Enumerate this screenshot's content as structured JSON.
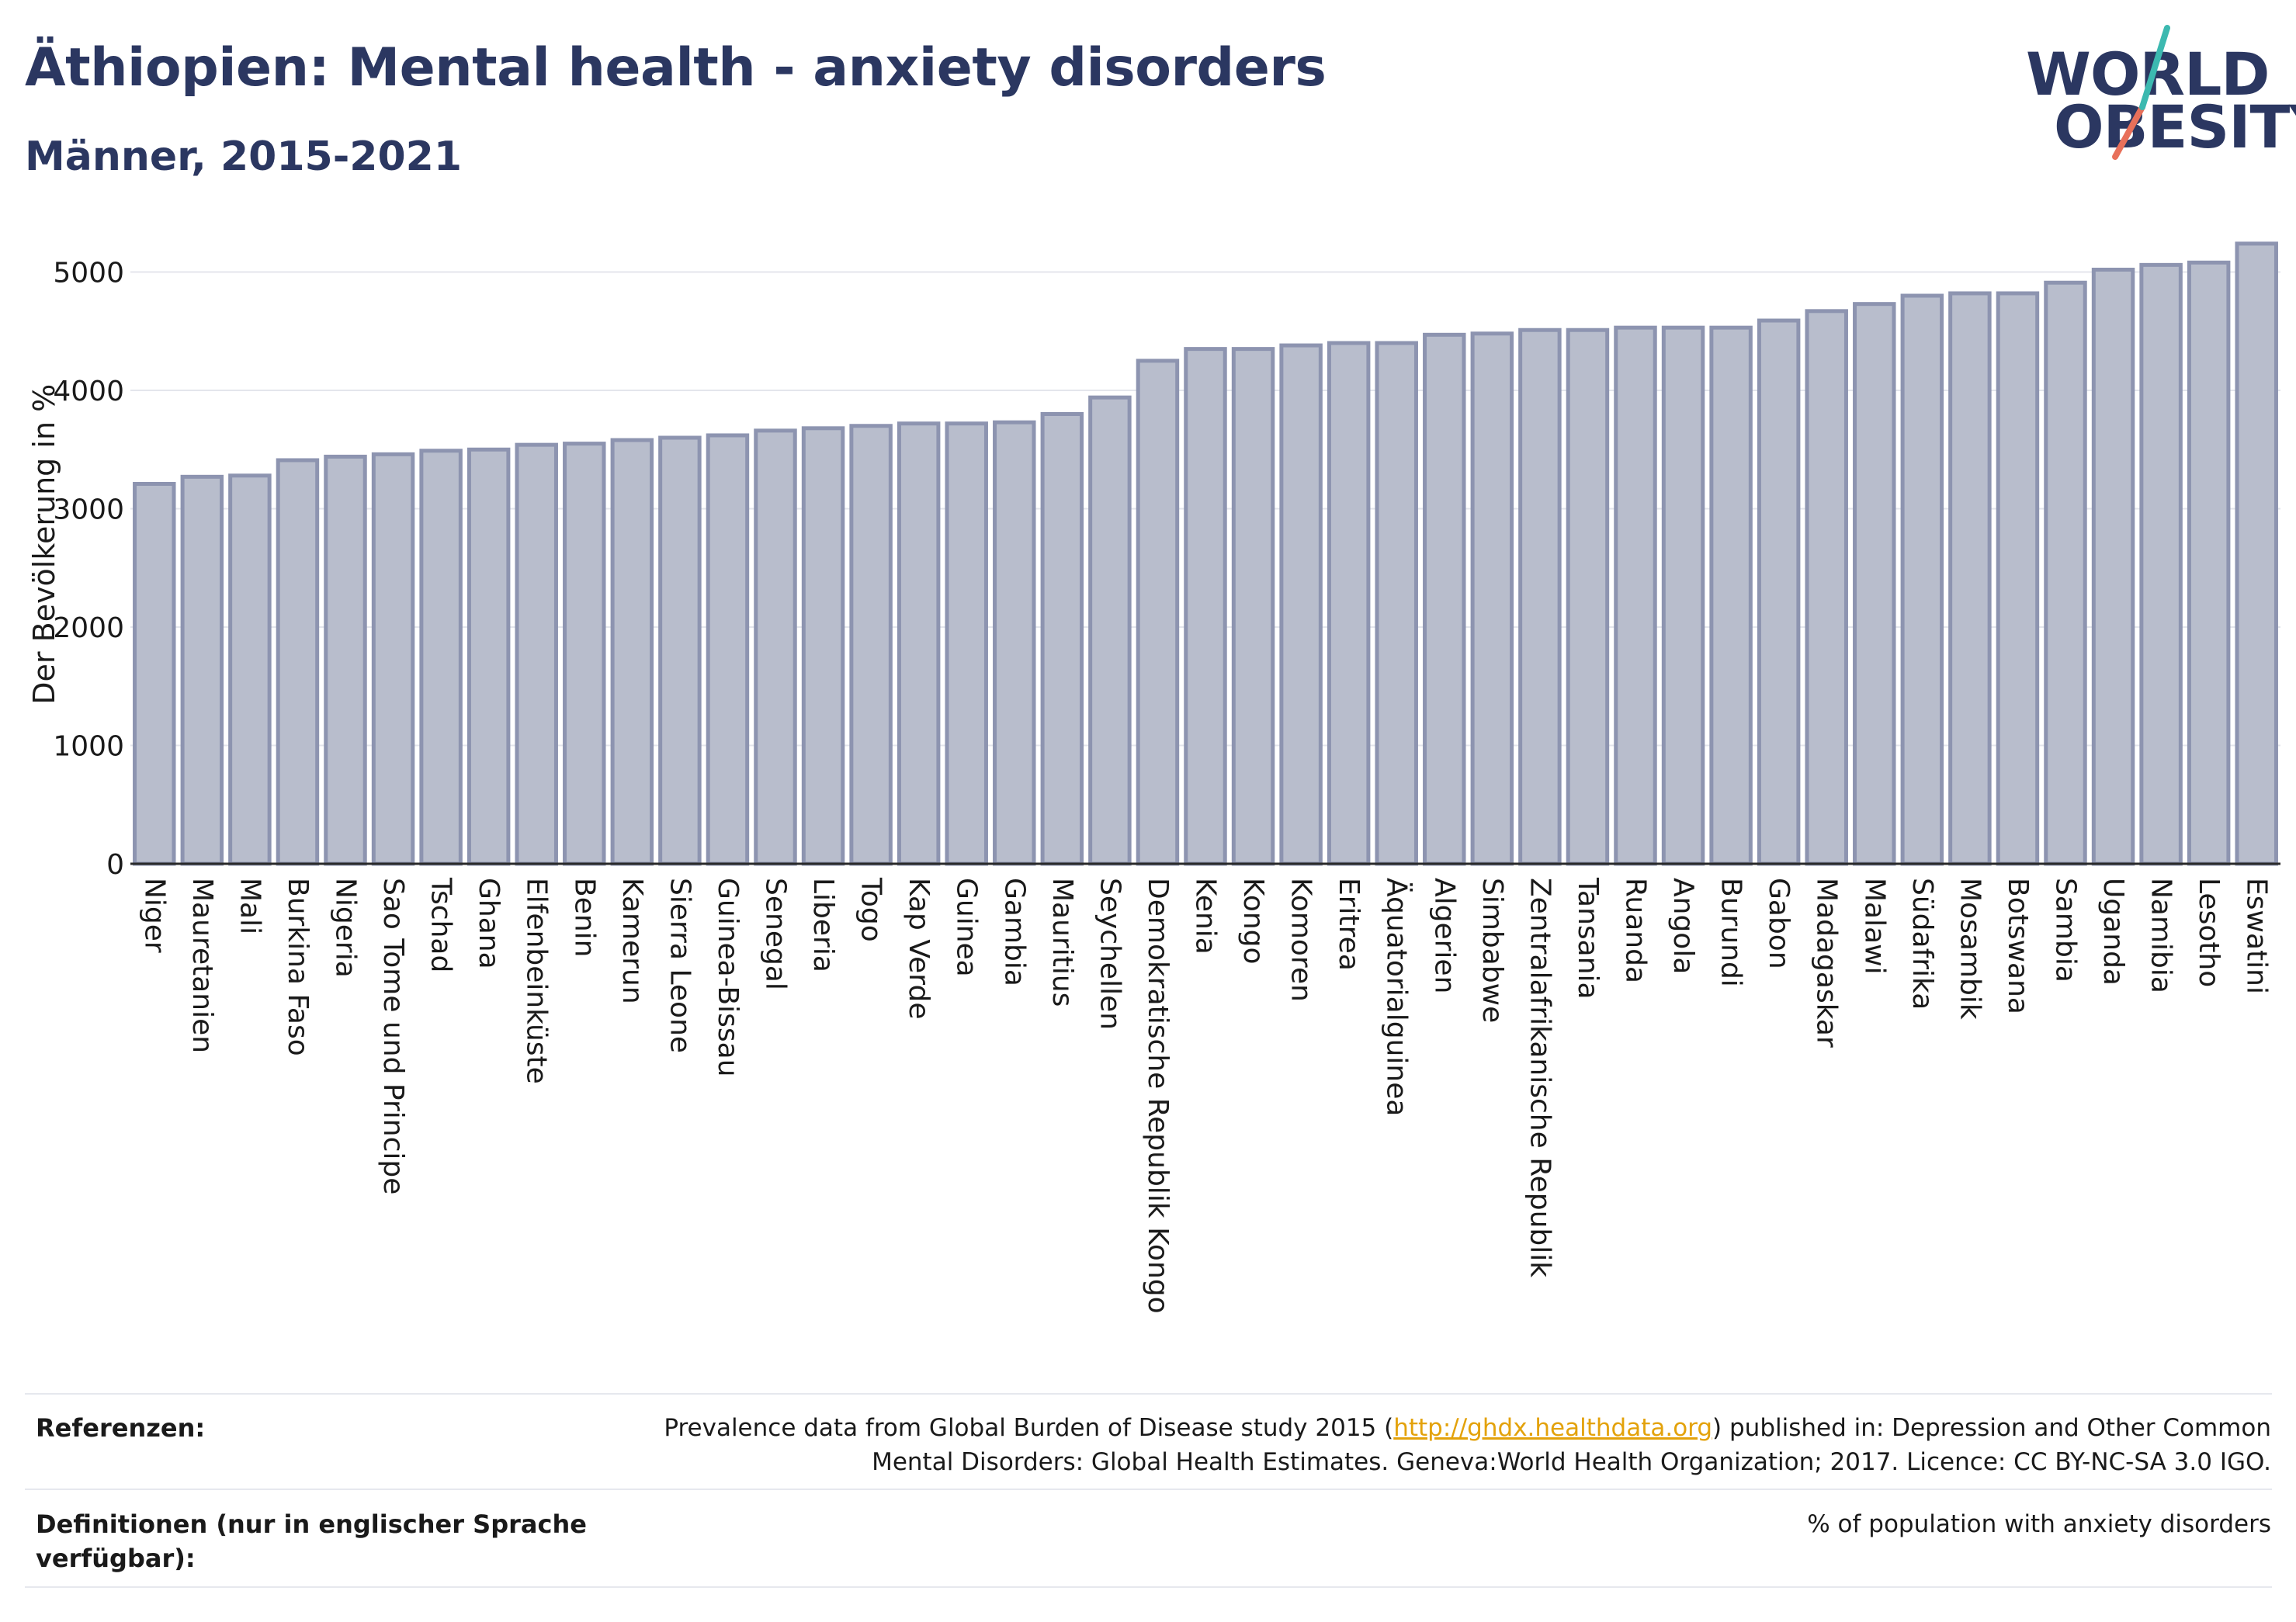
{
  "header": {
    "title": "Äthiopien: Mental health - anxiety disorders",
    "subtitle": "Männer, 2015-2021"
  },
  "logo": {
    "line1": "WORLD",
    "line2": "OBESITY",
    "icon": "world-obesity-logo"
  },
  "colors": {
    "bar_fill": "#b8bdcc",
    "bar_stroke": "#8d94b0",
    "title": "#2b3761",
    "link": "#e3a20b",
    "logo_slash_teal": "#3cb9b0",
    "logo_slash_coral": "#e8705a"
  },
  "chart_data": {
    "type": "bar",
    "ylabel": "Der Bevölkerung in %",
    "xlabel": "",
    "ylim": [
      0,
      5300
    ],
    "yticks": [
      0,
      1000,
      2000,
      3000,
      4000,
      5000
    ],
    "grid": true,
    "categories": [
      "Niger",
      "Mauretanien",
      "Mali",
      "Burkina Faso",
      "Nigeria",
      "Sao Tome und Principe",
      "Tschad",
      "Ghana",
      "Elfenbeinküste",
      "Benin",
      "Kamerun",
      "Sierra Leone",
      "Guinea-Bissau",
      "Senegal",
      "Liberia",
      "Togo",
      "Kap Verde",
      "Guinea",
      "Gambia",
      "Mauritius",
      "Seychellen",
      "Demokratische Republik Kongo",
      "Kenia",
      "Kongo",
      "Komoren",
      "Eritrea",
      "Äquatorialguinea",
      "Algerien",
      "Simbabwe",
      "Zentralafrikanische Republik",
      "Tansania",
      "Ruanda",
      "Angola",
      "Burundi",
      "Gabon",
      "Madagaskar",
      "Malawi",
      "Südafrika",
      "Mosambik",
      "Botswana",
      "Sambia",
      "Uganda",
      "Namibia",
      "Lesotho",
      "Eswatini"
    ],
    "values": [
      3210,
      3270,
      3280,
      3410,
      3440,
      3460,
      3490,
      3500,
      3540,
      3550,
      3580,
      3600,
      3620,
      3660,
      3680,
      3700,
      3720,
      3720,
      3730,
      3800,
      3940,
      4250,
      4350,
      4350,
      4380,
      4400,
      4400,
      4470,
      4480,
      4510,
      4510,
      4530,
      4530,
      4530,
      4590,
      4670,
      4730,
      4800,
      4820,
      4820,
      4910,
      5020,
      5060,
      5080,
      5240
    ]
  },
  "footer": {
    "references_label": "Referenzen:",
    "references_pre": "Prevalence data from Global Burden of Disease study 2015 (",
    "references_link": "http://ghdx.healthdata.org",
    "references_post": ") published in: Depression and Other Common",
    "references_line2": "Mental Disorders: Global Health Estimates. Geneva:World Health Organization; 2017. Licence: CC BY-NC-SA 3.0 IGO.",
    "definitions_label_1": "Definitionen (nur in englischer Sprache",
    "definitions_label_2": "verfügbar):",
    "definitions_text": "% of population with anxiety disorders"
  }
}
